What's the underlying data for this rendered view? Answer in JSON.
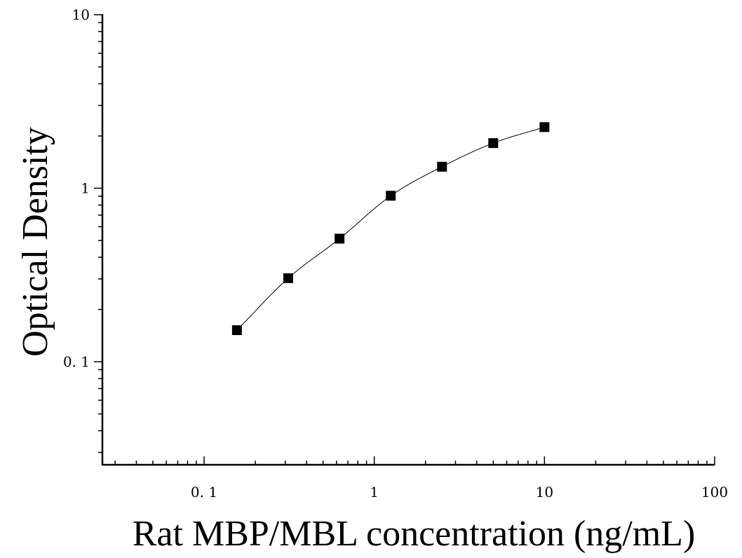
{
  "chart_data": {
    "type": "scatter",
    "title": "",
    "xlabel": "Rat MBP/MBL concentration (ng/mL)",
    "ylabel": "Optical Density",
    "x_scale": "log",
    "y_scale": "log",
    "xlim": [
      0.025,
      100
    ],
    "ylim": [
      0.025,
      10
    ],
    "x_ticks": [
      0.1,
      1,
      10,
      100
    ],
    "x_tick_labels": [
      "0. 1",
      "1",
      "10",
      "100"
    ],
    "y_ticks": [
      0.1,
      1,
      10
    ],
    "y_tick_labels": [
      "0. 1",
      "1",
      "10"
    ],
    "grid": false,
    "legend": "none",
    "marker": "square",
    "marker_color": "#000000",
    "curve": "fitted",
    "series": [
      {
        "x": [
          0.156,
          0.312,
          0.625,
          1.25,
          2.5,
          5,
          10
        ],
        "y": [
          0.152,
          0.303,
          0.512,
          0.905,
          1.33,
          1.82,
          2.25
        ]
      }
    ]
  }
}
